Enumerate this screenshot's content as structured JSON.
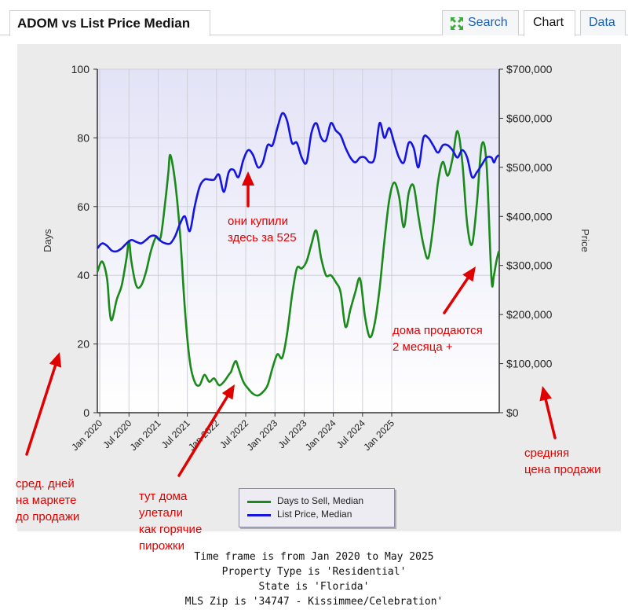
{
  "header": {
    "title": "ADOM vs List Price Median",
    "tabs": [
      {
        "label": "Search",
        "icon": "expand-arrows-icon"
      },
      {
        "label": "Chart",
        "active": true
      },
      {
        "label": "Data"
      }
    ]
  },
  "colors": {
    "days_series": "#1a8a1a",
    "price_series": "#1515e0",
    "annotation": "#e00000",
    "link": "#1a5fb4"
  },
  "chart_data": {
    "type": "line",
    "left_axis": {
      "label": "Days",
      "min": 0,
      "max": 100,
      "ticks": [
        0,
        20,
        40,
        60,
        80,
        100
      ]
    },
    "right_axis": {
      "label": "Price",
      "min": 0,
      "max": 700000,
      "ticks": [
        "$0",
        "$100,000",
        "$200,000",
        "$300,000",
        "$400,000",
        "$500,000",
        "$600,000",
        "$700,000"
      ]
    },
    "x_ticks": [
      "Jan 2020",
      "Jul 2020",
      "Jan 2021",
      "Jul 2021",
      "Jan 2022",
      "Jul 2022",
      "Jan 2023",
      "Jul 2023",
      "Jan 2024",
      "Jul 2024",
      "Jan 2025"
    ],
    "x_start": "Jan 2020",
    "grid": true,
    "legend_position": "bottom-center",
    "series": [
      {
        "name": "Days to Sell, Median",
        "axis": "left",
        "values": [
          [
            0,
            41
          ],
          [
            1,
            44
          ],
          [
            2,
            39
          ],
          [
            2.5,
            30
          ],
          [
            3,
            27
          ],
          [
            4,
            33
          ],
          [
            5,
            37
          ],
          [
            6,
            45
          ],
          [
            6.5,
            50
          ],
          [
            7,
            44
          ],
          [
            8,
            37
          ],
          [
            9,
            37
          ],
          [
            10,
            41
          ],
          [
            11,
            47
          ],
          [
            12,
            51
          ],
          [
            13,
            51
          ],
          [
            14,
            62
          ],
          [
            14.6,
            70
          ],
          [
            15,
            75
          ],
          [
            16,
            67
          ],
          [
            17,
            52
          ],
          [
            18,
            30
          ],
          [
            19,
            15
          ],
          [
            20,
            9
          ],
          [
            21,
            8
          ],
          [
            22,
            11
          ],
          [
            23,
            9
          ],
          [
            24,
            10
          ],
          [
            25,
            8
          ],
          [
            26,
            9
          ],
          [
            27,
            11
          ],
          [
            27.5,
            12
          ],
          [
            28,
            14
          ],
          [
            28.5,
            15
          ],
          [
            29,
            13
          ],
          [
            30,
            9
          ],
          [
            31,
            7
          ],
          [
            32,
            5.5
          ],
          [
            33,
            5
          ],
          [
            34,
            6
          ],
          [
            35,
            8
          ],
          [
            36,
            13
          ],
          [
            37,
            17
          ],
          [
            38,
            16
          ],
          [
            39,
            23
          ],
          [
            40,
            34
          ],
          [
            41,
            42
          ],
          [
            42,
            42
          ],
          [
            43,
            44
          ],
          [
            44,
            49
          ],
          [
            45,
            53
          ],
          [
            46,
            45
          ],
          [
            47,
            40
          ],
          [
            48,
            40
          ],
          [
            49,
            38
          ],
          [
            50,
            35
          ],
          [
            51,
            25
          ],
          [
            52,
            30
          ],
          [
            53,
            35
          ],
          [
            54,
            39
          ],
          [
            55,
            28
          ],
          [
            56,
            22
          ],
          [
            57,
            26
          ],
          [
            58,
            36
          ],
          [
            59,
            50
          ],
          [
            60,
            62
          ],
          [
            61,
            67
          ],
          [
            62,
            63
          ],
          [
            63,
            54
          ],
          [
            64,
            64
          ],
          [
            65,
            66
          ],
          [
            66,
            57
          ],
          [
            67,
            49
          ],
          [
            68,
            45
          ],
          [
            69,
            54
          ],
          [
            70,
            67
          ],
          [
            71,
            73
          ],
          [
            72,
            69
          ],
          [
            73,
            74
          ],
          [
            74,
            82
          ],
          [
            75,
            73
          ],
          [
            76,
            55
          ],
          [
            77,
            49
          ],
          [
            78,
            61
          ],
          [
            79,
            78
          ],
          [
            80,
            72
          ],
          [
            81,
            39
          ],
          [
            81.5,
            40
          ],
          [
            82,
            44
          ],
          [
            82.5,
            47
          ]
        ]
      },
      {
        "name": "List Price, Median",
        "axis": "right",
        "values": [
          [
            0,
            335000
          ],
          [
            1,
            345000
          ],
          [
            2,
            340000
          ],
          [
            3,
            330000
          ],
          [
            4,
            329000
          ],
          [
            5,
            335000
          ],
          [
            6,
            345000
          ],
          [
            7,
            352000
          ],
          [
            8,
            348000
          ],
          [
            9,
            345000
          ],
          [
            10,
            352000
          ],
          [
            11,
            360000
          ],
          [
            12,
            360000
          ],
          [
            13,
            350000
          ],
          [
            14,
            345000
          ],
          [
            15,
            345000
          ],
          [
            16,
            360000
          ],
          [
            17,
            385000
          ],
          [
            18,
            400000
          ],
          [
            19,
            370000
          ],
          [
            20,
            420000
          ],
          [
            21,
            460000
          ],
          [
            22,
            475000
          ],
          [
            23,
            475000
          ],
          [
            24,
            475000
          ],
          [
            25,
            485000
          ],
          [
            26,
            450000
          ],
          [
            27,
            490000
          ],
          [
            28,
            495000
          ],
          [
            29,
            480000
          ],
          [
            30,
            515000
          ],
          [
            31,
            535000
          ],
          [
            32,
            525000
          ],
          [
            33,
            500000
          ],
          [
            34,
            510000
          ],
          [
            35,
            545000
          ],
          [
            36,
            545000
          ],
          [
            37,
            580000
          ],
          [
            38,
            610000
          ],
          [
            39,
            595000
          ],
          [
            40,
            550000
          ],
          [
            41,
            550000
          ],
          [
            42,
            520000
          ],
          [
            43,
            510000
          ],
          [
            44,
            570000
          ],
          [
            45,
            590000
          ],
          [
            46,
            560000
          ],
          [
            47,
            555000
          ],
          [
            48,
            590000
          ],
          [
            49,
            575000
          ],
          [
            50,
            565000
          ],
          [
            51,
            540000
          ],
          [
            52,
            520000
          ],
          [
            53,
            510000
          ],
          [
            54,
            520000
          ],
          [
            55,
            520000
          ],
          [
            56,
            510000
          ],
          [
            57,
            520000
          ],
          [
            58,
            590000
          ],
          [
            59,
            560000
          ],
          [
            60,
            580000
          ],
          [
            61,
            550000
          ],
          [
            62,
            520000
          ],
          [
            63,
            510000
          ],
          [
            64,
            550000
          ],
          [
            65,
            540000
          ],
          [
            66,
            500000
          ],
          [
            67,
            560000
          ],
          [
            68,
            560000
          ],
          [
            69,
            545000
          ],
          [
            70,
            530000
          ],
          [
            71,
            545000
          ],
          [
            72,
            545000
          ],
          [
            73,
            535000
          ],
          [
            74,
            520000
          ],
          [
            75,
            535000
          ],
          [
            76,
            520000
          ],
          [
            77,
            480000
          ],
          [
            78,
            490000
          ],
          [
            79,
            505000
          ],
          [
            80,
            520000
          ],
          [
            81,
            520000
          ],
          [
            81.5,
            510000
          ],
          [
            82,
            520000
          ],
          [
            82.5,
            525000
          ]
        ]
      }
    ]
  },
  "annotations": {
    "bought": "они купили\nздесь за 525",
    "selling": "дома продаются\n2 месяца +",
    "avg_days": "сред. дней\nна маркете\nдо продажи",
    "hot": "тут дома\nулетали\nкак горячие\nпирожки",
    "avg_price": "средняя\nцена продажи"
  },
  "footer": {
    "lines": [
      "Time frame is from Jan 2020 to May 2025",
      "Property Type is 'Residential'",
      "State is 'Florida'",
      "MLS Zip is '34747 - Kissimmee/Celebration'"
    ]
  }
}
